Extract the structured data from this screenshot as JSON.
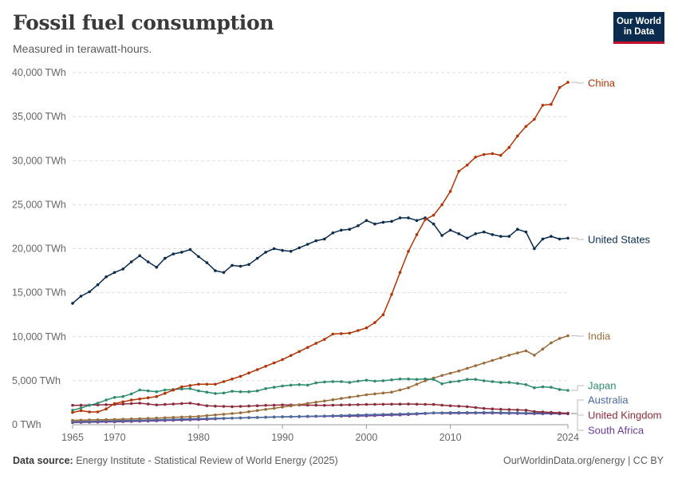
{
  "header": {
    "title": "Fossil fuel consumption",
    "subtitle": "Measured in terawatt-hours.",
    "logo_line1": "Our World",
    "logo_line2": "in Data"
  },
  "footer": {
    "source_label": "Data source:",
    "source_text": "Energy Institute - Statistical Review of World Energy (2025)",
    "url": "OurWorldinData.org/energy | CC BY"
  },
  "chart_data": {
    "type": "line",
    "title": "Fossil fuel consumption",
    "subtitle": "Measured in terawatt-hours.",
    "xlim": [
      1965,
      2024
    ],
    "ylim": [
      0,
      40000
    ],
    "y_ticks": [
      0,
      5000,
      10000,
      15000,
      20000,
      25000,
      30000,
      35000,
      40000
    ],
    "y_tick_labels": [
      "0 TWh",
      "5,000 TWh",
      "10,000 TWh",
      "15,000 TWh",
      "20,000 TWh",
      "25,000 TWh",
      "30,000 TWh",
      "35,000 TWh",
      "40,000 TWh"
    ],
    "x_ticks": [
      1965,
      1970,
      1980,
      1990,
      2000,
      2010,
      2024
    ],
    "x_tick_labels": [
      "1965",
      "1970",
      "1980",
      "1990",
      "2000",
      "2010",
      "2024"
    ],
    "grid": "horizontal-dashed",
    "legend": "right-end-labels",
    "series": [
      {
        "name": "China",
        "color": "#b13507",
        "label_y": 38900,
        "anchors": [
          [
            1965,
            1400
          ],
          [
            1966,
            1600
          ],
          [
            1967,
            1450
          ],
          [
            1968,
            1450
          ],
          [
            1969,
            1800
          ],
          [
            1970,
            2400
          ],
          [
            1972,
            2800
          ],
          [
            1975,
            3200
          ],
          [
            1978,
            4300
          ],
          [
            1980,
            4600
          ],
          [
            1982,
            4600
          ],
          [
            1985,
            5500
          ],
          [
            1990,
            7400
          ],
          [
            1995,
            9700
          ],
          [
            1996,
            10300
          ],
          [
            1998,
            10400
          ],
          [
            2000,
            11000
          ],
          [
            2001,
            11600
          ],
          [
            2002,
            12500
          ],
          [
            2003,
            14800
          ],
          [
            2004,
            17300
          ],
          [
            2005,
            19700
          ],
          [
            2006,
            21600
          ],
          [
            2007,
            23300
          ],
          [
            2008,
            23800
          ],
          [
            2009,
            25000
          ],
          [
            2010,
            26500
          ],
          [
            2011,
            28800
          ],
          [
            2012,
            29500
          ],
          [
            2013,
            30400
          ],
          [
            2014,
            30700
          ],
          [
            2015,
            30800
          ],
          [
            2016,
            30600
          ],
          [
            2017,
            31500
          ],
          [
            2018,
            32800
          ],
          [
            2019,
            33900
          ],
          [
            2020,
            34700
          ],
          [
            2021,
            36300
          ],
          [
            2022,
            36400
          ],
          [
            2023,
            38300
          ],
          [
            2024,
            38900
          ]
        ]
      },
      {
        "name": "United States",
        "color": "#0b2c4f",
        "label_y": 21200,
        "anchors": [
          [
            1965,
            13800
          ],
          [
            1966,
            14600
          ],
          [
            1967,
            15100
          ],
          [
            1968,
            15900
          ],
          [
            1969,
            16800
          ],
          [
            1970,
            17300
          ],
          [
            1971,
            17700
          ],
          [
            1972,
            18500
          ],
          [
            1973,
            19200
          ],
          [
            1974,
            18500
          ],
          [
            1975,
            17900
          ],
          [
            1976,
            18900
          ],
          [
            1977,
            19400
          ],
          [
            1978,
            19600
          ],
          [
            1979,
            19900
          ],
          [
            1980,
            19100
          ],
          [
            1981,
            18400
          ],
          [
            1982,
            17500
          ],
          [
            1983,
            17300
          ],
          [
            1984,
            18100
          ],
          [
            1985,
            18000
          ],
          [
            1986,
            18200
          ],
          [
            1987,
            18900
          ],
          [
            1988,
            19600
          ],
          [
            1989,
            20000
          ],
          [
            1990,
            19800
          ],
          [
            1991,
            19700
          ],
          [
            1992,
            20100
          ],
          [
            1993,
            20500
          ],
          [
            1994,
            20900
          ],
          [
            1995,
            21100
          ],
          [
            1996,
            21800
          ],
          [
            1997,
            22100
          ],
          [
            1998,
            22200
          ],
          [
            1999,
            22600
          ],
          [
            2000,
            23200
          ],
          [
            2001,
            22800
          ],
          [
            2002,
            23000
          ],
          [
            2003,
            23100
          ],
          [
            2004,
            23500
          ],
          [
            2005,
            23500
          ],
          [
            2006,
            23200
          ],
          [
            2007,
            23500
          ],
          [
            2008,
            22800
          ],
          [
            2009,
            21500
          ],
          [
            2010,
            22100
          ],
          [
            2011,
            21700
          ],
          [
            2012,
            21200
          ],
          [
            2013,
            21700
          ],
          [
            2014,
            21900
          ],
          [
            2015,
            21600
          ],
          [
            2016,
            21400
          ],
          [
            2017,
            21400
          ],
          [
            2018,
            22200
          ],
          [
            2019,
            21900
          ],
          [
            2020,
            20000
          ],
          [
            2021,
            21100
          ],
          [
            2022,
            21400
          ],
          [
            2023,
            21100
          ],
          [
            2024,
            21200
          ]
        ]
      },
      {
        "name": "India",
        "color": "#9a6c3a",
        "label_y": 10100,
        "anchors": [
          [
            1965,
            500
          ],
          [
            1970,
            600
          ],
          [
            1975,
            750
          ],
          [
            1980,
            950
          ],
          [
            1985,
            1350
          ],
          [
            1990,
            2000
          ],
          [
            1995,
            2700
          ],
          [
            2000,
            3400
          ],
          [
            2003,
            3700
          ],
          [
            2005,
            4200
          ],
          [
            2007,
            5000
          ],
          [
            2009,
            5600
          ],
          [
            2011,
            6100
          ],
          [
            2013,
            6700
          ],
          [
            2015,
            7300
          ],
          [
            2017,
            7900
          ],
          [
            2019,
            8400
          ],
          [
            2020,
            7900
          ],
          [
            2021,
            8600
          ],
          [
            2022,
            9300
          ],
          [
            2023,
            9800
          ],
          [
            2024,
            10100
          ]
        ]
      },
      {
        "name": "Japan",
        "color": "#2e8b6e",
        "label_y": 4000,
        "anchors": [
          [
            1965,
            1650
          ],
          [
            1966,
            1900
          ],
          [
            1967,
            2200
          ],
          [
            1968,
            2450
          ],
          [
            1969,
            2800
          ],
          [
            1970,
            3100
          ],
          [
            1971,
            3200
          ],
          [
            1972,
            3500
          ],
          [
            1973,
            3950
          ],
          [
            1974,
            3850
          ],
          [
            1975,
            3750
          ],
          [
            1976,
            3950
          ],
          [
            1977,
            4000
          ],
          [
            1978,
            4050
          ],
          [
            1979,
            4100
          ],
          [
            1980,
            3850
          ],
          [
            1981,
            3700
          ],
          [
            1982,
            3550
          ],
          [
            1983,
            3600
          ],
          [
            1984,
            3800
          ],
          [
            1985,
            3750
          ],
          [
            1986,
            3750
          ],
          [
            1987,
            3850
          ],
          [
            1988,
            4100
          ],
          [
            1989,
            4250
          ],
          [
            1990,
            4400
          ],
          [
            1991,
            4500
          ],
          [
            1992,
            4550
          ],
          [
            1993,
            4500
          ],
          [
            1994,
            4750
          ],
          [
            1995,
            4850
          ],
          [
            1996,
            4900
          ],
          [
            1997,
            4900
          ],
          [
            1998,
            4800
          ],
          [
            1999,
            4950
          ],
          [
            2000,
            5050
          ],
          [
            2001,
            4950
          ],
          [
            2002,
            5000
          ],
          [
            2003,
            5100
          ],
          [
            2004,
            5200
          ],
          [
            2005,
            5200
          ],
          [
            2006,
            5150
          ],
          [
            2007,
            5200
          ],
          [
            2008,
            5150
          ],
          [
            2009,
            4650
          ],
          [
            2010,
            4850
          ],
          [
            2011,
            4950
          ],
          [
            2012,
            5150
          ],
          [
            2013,
            5150
          ],
          [
            2014,
            5000
          ],
          [
            2015,
            4900
          ],
          [
            2016,
            4800
          ],
          [
            2017,
            4800
          ],
          [
            2018,
            4700
          ],
          [
            2019,
            4550
          ],
          [
            2020,
            4200
          ],
          [
            2021,
            4300
          ],
          [
            2022,
            4250
          ],
          [
            2023,
            4000
          ],
          [
            2024,
            3900
          ]
        ]
      },
      {
        "name": "Australia",
        "color": "#4c6a9c",
        "label_y": 1400,
        "anchors": [
          [
            1965,
            350
          ],
          [
            1970,
            450
          ],
          [
            1975,
            560
          ],
          [
            1980,
            700
          ],
          [
            1985,
            760
          ],
          [
            1990,
            900
          ],
          [
            1995,
            1000
          ],
          [
            2000,
            1130
          ],
          [
            2005,
            1250
          ],
          [
            2008,
            1350
          ],
          [
            2010,
            1380
          ],
          [
            2015,
            1400
          ],
          [
            2020,
            1330
          ],
          [
            2024,
            1310
          ]
        ]
      },
      {
        "name": "United Kingdom",
        "color": "#8c2a3b",
        "label_y": 1300,
        "anchors": [
          [
            1965,
            2200
          ],
          [
            1968,
            2250
          ],
          [
            1970,
            2300
          ],
          [
            1973,
            2450
          ],
          [
            1975,
            2250
          ],
          [
            1979,
            2450
          ],
          [
            1981,
            2150
          ],
          [
            1984,
            2050
          ],
          [
            1988,
            2200
          ],
          [
            1990,
            2250
          ],
          [
            1995,
            2200
          ],
          [
            2000,
            2300
          ],
          [
            2005,
            2350
          ],
          [
            2008,
            2300
          ],
          [
            2010,
            2150
          ],
          [
            2012,
            2050
          ],
          [
            2014,
            1850
          ],
          [
            2016,
            1750
          ],
          [
            2019,
            1650
          ],
          [
            2020,
            1500
          ],
          [
            2022,
            1400
          ],
          [
            2024,
            1300
          ]
        ]
      },
      {
        "name": "South Africa",
        "color": "#6a3d9a",
        "label_y": 1250,
        "anchors": [
          [
            1965,
            250
          ],
          [
            1970,
            330
          ],
          [
            1975,
            440
          ],
          [
            1980,
            580
          ],
          [
            1985,
            780
          ],
          [
            1990,
            900
          ],
          [
            1995,
            950
          ],
          [
            2000,
            1000
          ],
          [
            2005,
            1150
          ],
          [
            2008,
            1320
          ],
          [
            2010,
            1300
          ],
          [
            2015,
            1320
          ],
          [
            2020,
            1250
          ],
          [
            2024,
            1230
          ]
        ]
      }
    ]
  }
}
